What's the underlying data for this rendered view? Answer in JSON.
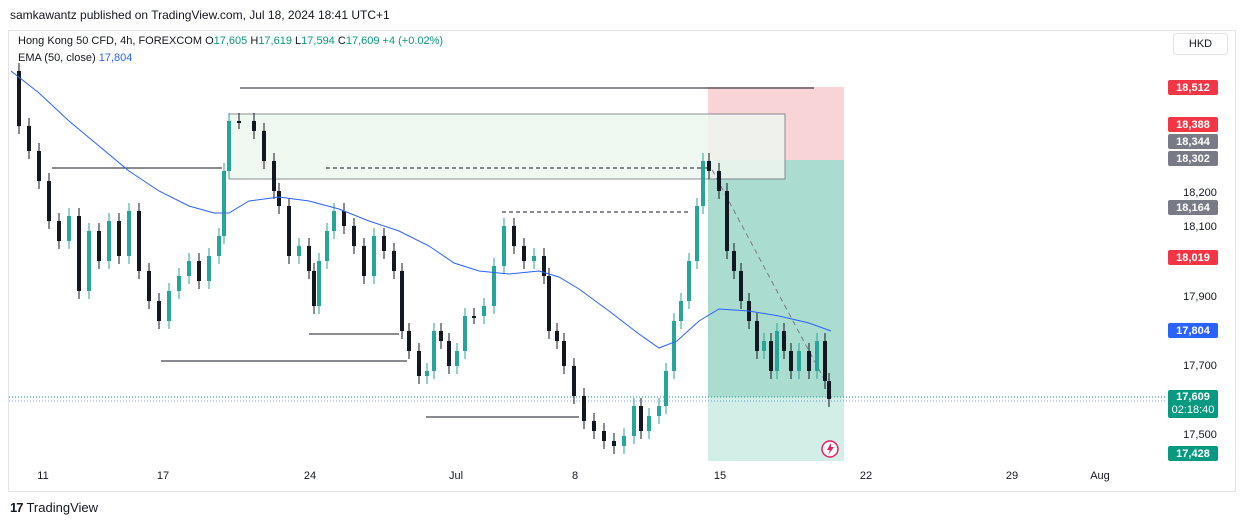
{
  "caption": "samkawantz published on TradingView.com, Jul 18, 2024 18:41 UTC+1",
  "legend": {
    "symbol": "Hong Kong 50 CFD, 4h, FOREXCOM",
    "o_label": "O",
    "o_value": "17,605",
    "h_label": "H",
    "h_value": "17,619",
    "l_label": "L",
    "l_value": "17,594",
    "c_label": "C",
    "c_value": "17,609",
    "change": "+4 (+0.02%)",
    "ema_label": "EMA (50, close)",
    "ema_value": "17,804"
  },
  "currency_button": "HKD",
  "price_axis": {
    "ticks": [
      "18,200",
      "18,100",
      "17,900",
      "17,700",
      "17,500"
    ],
    "tags": {
      "tp_top": "18,512",
      "stop": "18,388",
      "box_top": "18,344",
      "entry": "18,302",
      "level_a": "18,164",
      "level_b": "18,019",
      "ema": "17,804",
      "current_price": "17,609",
      "countdown": "02:18:40",
      "target": "17,428"
    }
  },
  "time_axis": [
    "11",
    "17",
    "24",
    "Jul",
    "8",
    "15",
    "22",
    "29",
    "Aug"
  ],
  "branding": "TradingView",
  "colors": {
    "up": "#26a69a",
    "down": "#131722",
    "ema": "#2962ff",
    "risk": "#f23645",
    "reward": "#089981",
    "tag_red": "#f23645",
    "tag_gray": "#787b86"
  },
  "chart_data": {
    "type": "candlestick",
    "title": "Hong Kong 50 CFD, 4h, FOREXCOM",
    "ylim": [
      17360,
      18560
    ],
    "ema_last": 17804,
    "last": 17609
  }
}
